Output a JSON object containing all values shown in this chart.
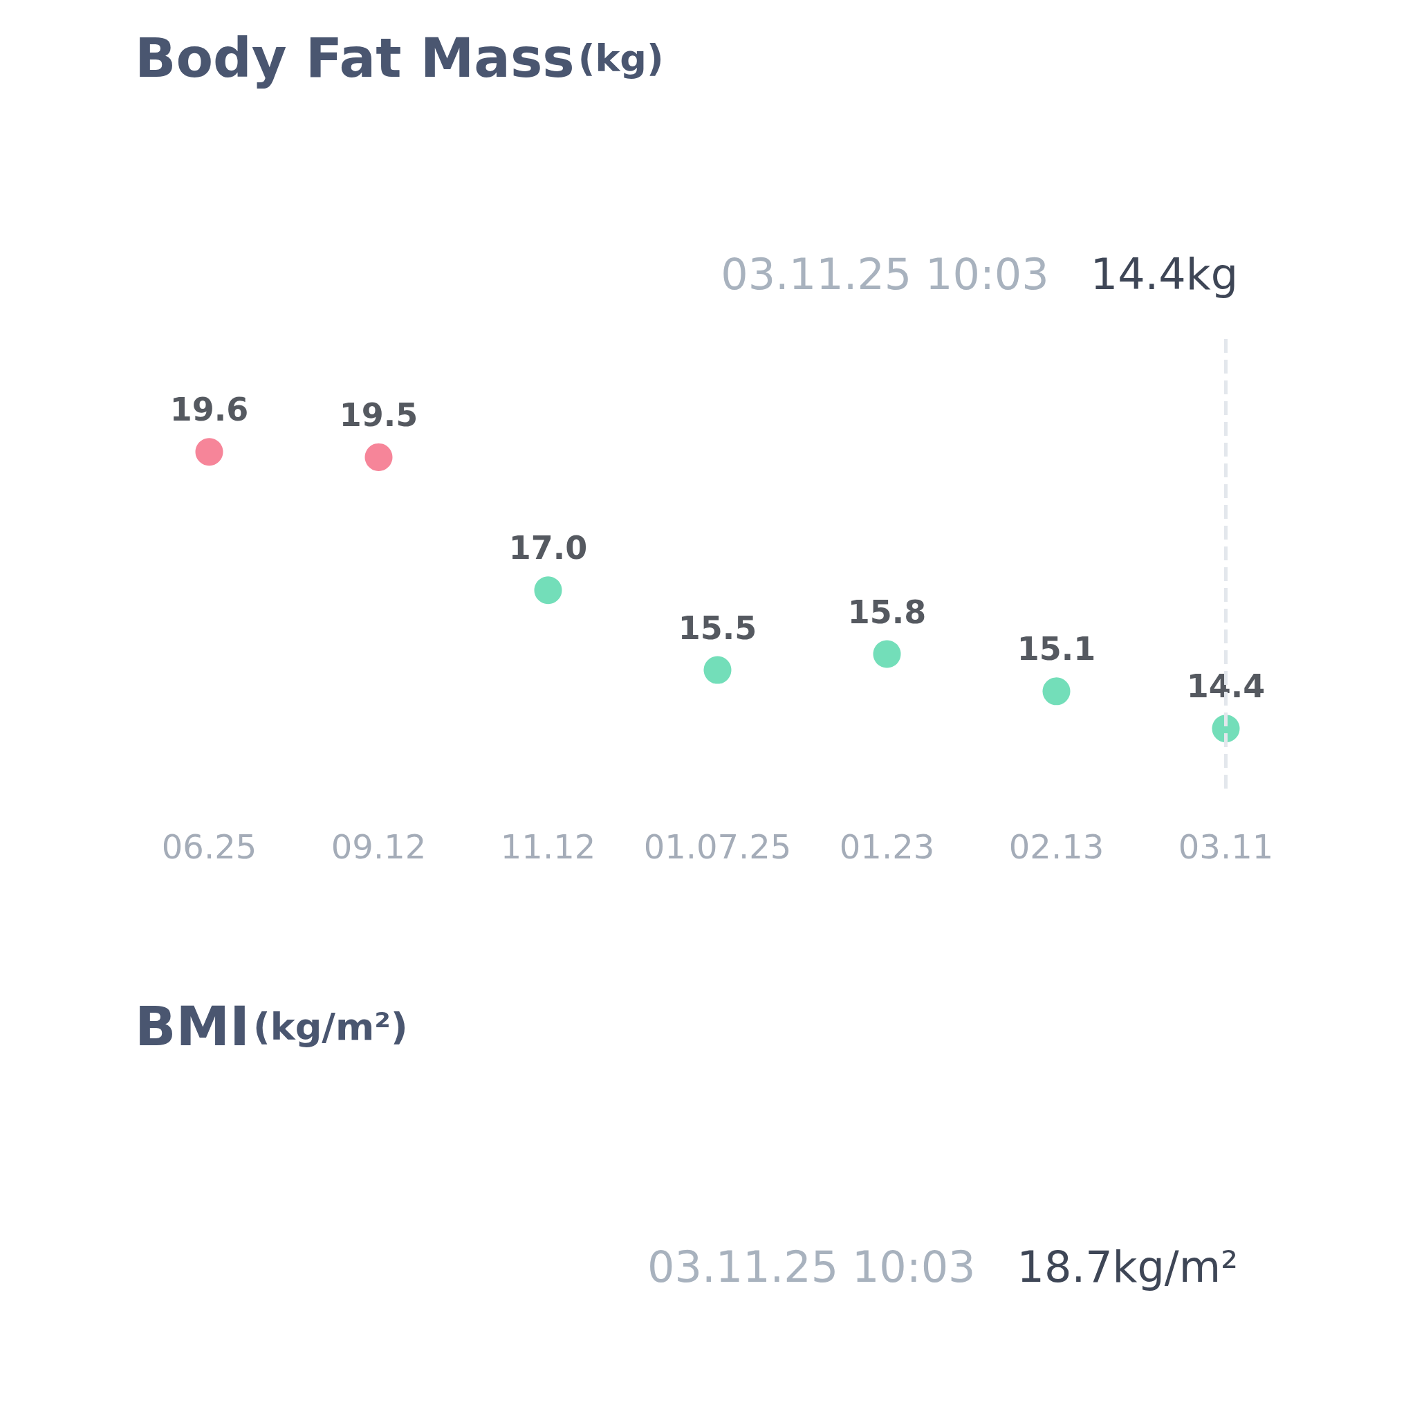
{
  "chart_data": [
    {
      "type": "scatter",
      "title": "Body Fat Mass",
      "subtitle": "(kg)",
      "categories": [
        "06.25",
        "09.12",
        "11.12",
        "01.07.25",
        "01.23",
        "02.13",
        "03.11"
      ],
      "values": [
        19.6,
        19.5,
        17.0,
        15.5,
        15.8,
        15.1,
        14.4
      ],
      "colors": [
        "#f4677f",
        "#f4677f",
        "#50d6a8",
        "#50d6a8",
        "#50d6a8",
        "#50d6a8",
        "#50d6a8"
      ],
      "value_labels": [
        "19.6",
        "19.5",
        "17.0",
        "15.5",
        "15.8",
        "15.1",
        "14.4"
      ],
      "marker": "circle",
      "ref_lines": [
        {
          "axis": "x",
          "value": "03.11",
          "color": "#e3e7ec",
          "line_style": "dashed"
        }
      ],
      "annotations": [
        "03.11.25 10:03",
        "14.4kg"
      ]
    },
    {
      "type": "other",
      "title": "BMI",
      "subtitle": "(kg/m²)",
      "annotations": [
        "03.11.25 10:03",
        "18.7kg/m²"
      ]
    }
  ]
}
